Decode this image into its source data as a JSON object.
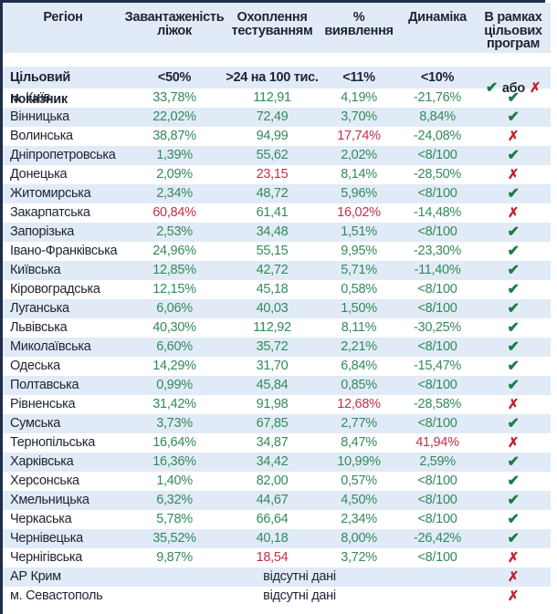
{
  "colors": {
    "frame_navy": "#1e2d4a",
    "stripe_blue": "#e1ebf7",
    "text_dark": "#1e2430",
    "green": "#338a5b",
    "red": "#c53049",
    "check_green": "#1d7a45",
    "cross_red": "#c0222f"
  },
  "chart_data": {
    "type": "table",
    "columns": [
      "Регіон",
      "Завантаженість\nліжок",
      "Охоплення\nтестуванням",
      "%\nвиявлення",
      "Динаміка",
      "В рамках\nцільових\nпрограм"
    ],
    "marks": {
      "check": "✔",
      "cross": "✗"
    },
    "target": {
      "label": "Цільовий показник",
      "beds": "<50%",
      "testing": ">24 на 100 тис.",
      "detection": "<11%",
      "dynamics": "<10%",
      "program_or": "або"
    },
    "rows": [
      {
        "region": "м. Київ",
        "beds": "33,78%",
        "beds_c": "g",
        "testing": "112,91",
        "testing_c": "g",
        "detection": "4,19%",
        "detection_c": "g",
        "dynamics": "-21,76%",
        "dynamics_c": "g",
        "mark": "check"
      },
      {
        "region": "Вінницька",
        "beds": "22,02%",
        "beds_c": "g",
        "testing": "72,49",
        "testing_c": "g",
        "detection": "3,70%",
        "detection_c": "g",
        "dynamics": "8,84%",
        "dynamics_c": "g",
        "mark": "check"
      },
      {
        "region": "Волинська",
        "beds": "38,87%",
        "beds_c": "g",
        "testing": "94,99",
        "testing_c": "g",
        "detection": "17,74%",
        "detection_c": "r",
        "dynamics": "-24,08%",
        "dynamics_c": "g",
        "mark": "cross"
      },
      {
        "region": "Дніпропетровська",
        "beds": "1,39%",
        "beds_c": "g",
        "testing": "55,62",
        "testing_c": "g",
        "detection": "2,02%",
        "detection_c": "g",
        "dynamics": "<8/100",
        "dynamics_c": "g",
        "mark": "check"
      },
      {
        "region": "Донецька",
        "beds": "2,09%",
        "beds_c": "g",
        "testing": "23,15",
        "testing_c": "r",
        "detection": "8,14%",
        "detection_c": "g",
        "dynamics": "-28,50%",
        "dynamics_c": "g",
        "mark": "cross"
      },
      {
        "region": "Житомирська",
        "beds": "2,34%",
        "beds_c": "g",
        "testing": "48,72",
        "testing_c": "g",
        "detection": "5,96%",
        "detection_c": "g",
        "dynamics": "<8/100",
        "dynamics_c": "g",
        "mark": "check"
      },
      {
        "region": "Закарпатська",
        "beds": "60,84%",
        "beds_c": "r",
        "testing": "61,41",
        "testing_c": "g",
        "detection": "16,02%",
        "detection_c": "r",
        "dynamics": "-14,48%",
        "dynamics_c": "g",
        "mark": "cross"
      },
      {
        "region": "Запорізька",
        "beds": "2,53%",
        "beds_c": "g",
        "testing": "34,48",
        "testing_c": "g",
        "detection": "1,51%",
        "detection_c": "g",
        "dynamics": "<8/100",
        "dynamics_c": "g",
        "mark": "check"
      },
      {
        "region": "Івано-Франківська",
        "beds": "24,96%",
        "beds_c": "g",
        "testing": "55,15",
        "testing_c": "g",
        "detection": "9,95%",
        "detection_c": "g",
        "dynamics": "-23,30%",
        "dynamics_c": "g",
        "mark": "check"
      },
      {
        "region": "Київська",
        "beds": "12,85%",
        "beds_c": "g",
        "testing": "42,72",
        "testing_c": "g",
        "detection": "5,71%",
        "detection_c": "g",
        "dynamics": "-11,40%",
        "dynamics_c": "g",
        "mark": "check"
      },
      {
        "region": "Кіровоградська",
        "beds": "12,15%",
        "beds_c": "g",
        "testing": "45,18",
        "testing_c": "g",
        "detection": "0,58%",
        "detection_c": "g",
        "dynamics": "<8/100",
        "dynamics_c": "g",
        "mark": "check"
      },
      {
        "region": "Луганська",
        "beds": "6,06%",
        "beds_c": "g",
        "testing": "40,03",
        "testing_c": "g",
        "detection": "1,50%",
        "detection_c": "g",
        "dynamics": "<8/100",
        "dynamics_c": "g",
        "mark": "check"
      },
      {
        "region": "Львівська",
        "beds": "40,30%",
        "beds_c": "g",
        "testing": "112,92",
        "testing_c": "g",
        "detection": "8,11%",
        "detection_c": "g",
        "dynamics": "-30,25%",
        "dynamics_c": "g",
        "mark": "check"
      },
      {
        "region": "Миколаївська",
        "beds": "6,60%",
        "beds_c": "g",
        "testing": "35,72",
        "testing_c": "g",
        "detection": "2,21%",
        "detection_c": "g",
        "dynamics": "<8/100",
        "dynamics_c": "g",
        "mark": "check"
      },
      {
        "region": "Одеська",
        "beds": "14,29%",
        "beds_c": "g",
        "testing": "31,70",
        "testing_c": "g",
        "detection": "6,84%",
        "detection_c": "g",
        "dynamics": "-15,47%",
        "dynamics_c": "g",
        "mark": "check"
      },
      {
        "region": "Полтавська",
        "beds": "0,99%",
        "beds_c": "g",
        "testing": "45,84",
        "testing_c": "g",
        "detection": "0,85%",
        "detection_c": "g",
        "dynamics": "<8/100",
        "dynamics_c": "g",
        "mark": "check"
      },
      {
        "region": "Рівненська",
        "beds": "31,42%",
        "beds_c": "g",
        "testing": "91,98",
        "testing_c": "g",
        "detection": "12,68%",
        "detection_c": "r",
        "dynamics": "-28,58%",
        "dynamics_c": "g",
        "mark": "cross"
      },
      {
        "region": "Сумська",
        "beds": "3,73%",
        "beds_c": "g",
        "testing": "67,85",
        "testing_c": "g",
        "detection": "2,77%",
        "detection_c": "g",
        "dynamics": "<8/100",
        "dynamics_c": "g",
        "mark": "check"
      },
      {
        "region": "Тернопільська",
        "beds": "16,64%",
        "beds_c": "g",
        "testing": "34,87",
        "testing_c": "g",
        "detection": "8,47%",
        "detection_c": "g",
        "dynamics": "41,94%",
        "dynamics_c": "r",
        "mark": "cross"
      },
      {
        "region": "Харківська",
        "beds": "16,36%",
        "beds_c": "g",
        "testing": "34,42",
        "testing_c": "g",
        "detection": "10,99%",
        "detection_c": "g",
        "dynamics": "2,59%",
        "dynamics_c": "g",
        "mark": "check"
      },
      {
        "region": "Херсонська",
        "beds": "1,40%",
        "beds_c": "g",
        "testing": "82,00",
        "testing_c": "g",
        "detection": "0,57%",
        "detection_c": "g",
        "dynamics": "<8/100",
        "dynamics_c": "g",
        "mark": "check"
      },
      {
        "region": "Хмельницька",
        "beds": "6,32%",
        "beds_c": "g",
        "testing": "44,67",
        "testing_c": "g",
        "detection": "4,50%",
        "detection_c": "g",
        "dynamics": "<8/100",
        "dynamics_c": "g",
        "mark": "check"
      },
      {
        "region": "Черкаська",
        "beds": "5,78%",
        "beds_c": "g",
        "testing": "66,64",
        "testing_c": "g",
        "detection": "2,34%",
        "detection_c": "g",
        "dynamics": "<8/100",
        "dynamics_c": "g",
        "mark": "check"
      },
      {
        "region": "Чернівецька",
        "beds": "35,52%",
        "beds_c": "g",
        "testing": "40,18",
        "testing_c": "g",
        "detection": "8,00%",
        "detection_c": "g",
        "dynamics": "-26,42%",
        "dynamics_c": "g",
        "mark": "check"
      },
      {
        "region": "Чернігівська",
        "beds": "9,87%",
        "beds_c": "g",
        "testing": "18,54",
        "testing_c": "r",
        "detection": "3,72%",
        "detection_c": "g",
        "dynamics": "<8/100",
        "dynamics_c": "g",
        "mark": "cross"
      },
      {
        "region": "АР Крим",
        "no_data": "відсутні дані",
        "mark": "cross"
      },
      {
        "region": "м. Севастополь",
        "no_data": "відсутні дані",
        "mark": "cross"
      }
    ]
  }
}
